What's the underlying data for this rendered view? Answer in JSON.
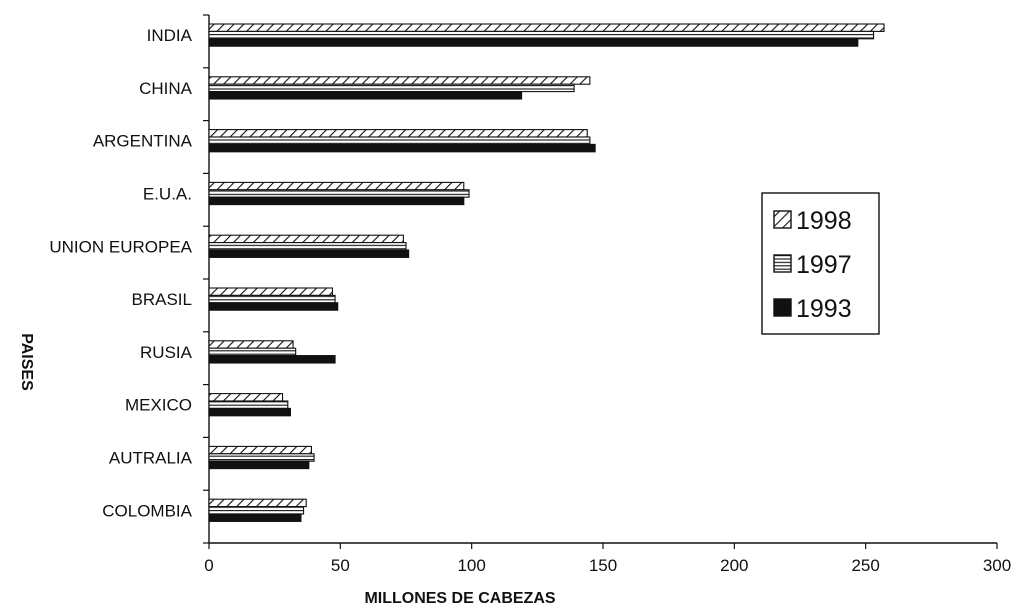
{
  "chart_data": {
    "type": "bar",
    "orientation": "horizontal",
    "categories": [
      "INDIA",
      "CHINA",
      "ARGENTINA",
      "E.U.A.",
      "UNION EUROPEA",
      "BRASIL",
      "RUSIA",
      "MEXICO",
      "AUTRALIA",
      "COLOMBIA"
    ],
    "series": [
      {
        "name": "1998",
        "pattern": "diagonal-hatch",
        "values": [
          257,
          145,
          144,
          97,
          74,
          47,
          32,
          28,
          39,
          37
        ]
      },
      {
        "name": "1997",
        "pattern": "horizontal-lines",
        "values": [
          253,
          139,
          145,
          99,
          75,
          48,
          33,
          30,
          40,
          36
        ]
      },
      {
        "name": "1993",
        "pattern": "solid",
        "values": [
          247,
          119,
          147,
          97,
          76,
          49,
          48,
          31,
          38,
          35
        ]
      }
    ],
    "xlabel": "MILLONES DE CABEZAS",
    "ylabel": "PAISES",
    "xlim": [
      0,
      300
    ],
    "xticks": [
      "0",
      "50",
      "100",
      "150",
      "200",
      "250",
      "300"
    ],
    "grid": false,
    "legend": "right",
    "colors": {
      "bar": "#111111",
      "background": "#ffffff"
    }
  }
}
